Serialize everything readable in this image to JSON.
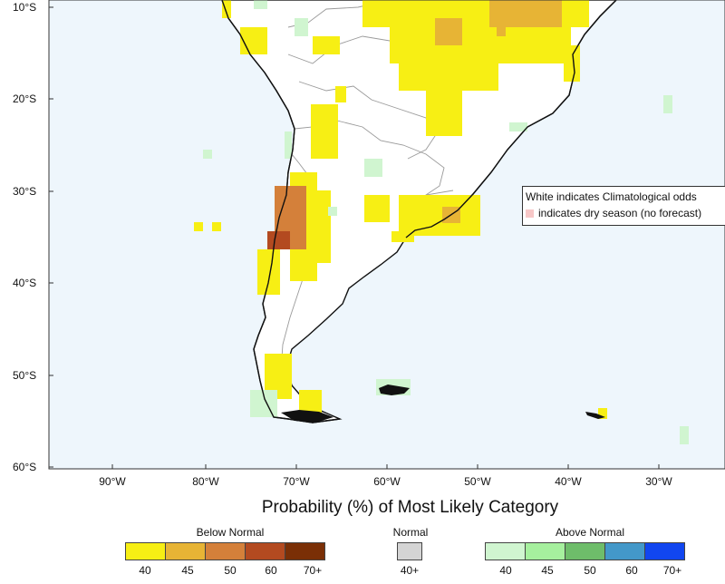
{
  "map": {
    "lat_labels": [
      "10°S",
      "20°S",
      "30°S",
      "40°S",
      "50°S",
      "60°S"
    ],
    "lon_labels": [
      "90°W",
      "80°W",
      "70°W",
      "60°W",
      "50°W",
      "40°W",
      "30°W"
    ],
    "colors": {
      "ocean": "#eef6fc",
      "land": "#ffffff",
      "below_40": "#f7ef14",
      "below_45": "#e7b435",
      "below_50": "#d4803a",
      "below_60": "#b34a20",
      "below_70": "#7a2f06",
      "normal": "#d4d4d4",
      "above_40": "#d0f5d0",
      "above_45": "#a6f09e",
      "above_50": "#6ebd6a",
      "above_60": "#4398c9",
      "above_70": "#1146f0",
      "dry": "#f7c7c7"
    }
  },
  "note": {
    "line1": "White indicates Climatological odds",
    "line2": "indicates dry season (no forecast)"
  },
  "legend": {
    "title": "Probability (%) of Most Likely Category",
    "below": {
      "label": "Below Normal",
      "ticks": [
        "40",
        "45",
        "50",
        "60",
        "70+"
      ],
      "colors": [
        "#f7ef14",
        "#e7b435",
        "#d4803a",
        "#b34a20",
        "#7a2f06"
      ]
    },
    "normal": {
      "label": "Normal",
      "ticks": [
        "40+"
      ],
      "colors": [
        "#d4d4d4"
      ]
    },
    "above": {
      "label": "Above Normal",
      "ticks": [
        "40",
        "45",
        "50",
        "60",
        "70+"
      ],
      "colors": [
        "#d0f5d0",
        "#a6f09e",
        "#6ebd6a",
        "#4398c9",
        "#1146f0"
      ]
    }
  }
}
